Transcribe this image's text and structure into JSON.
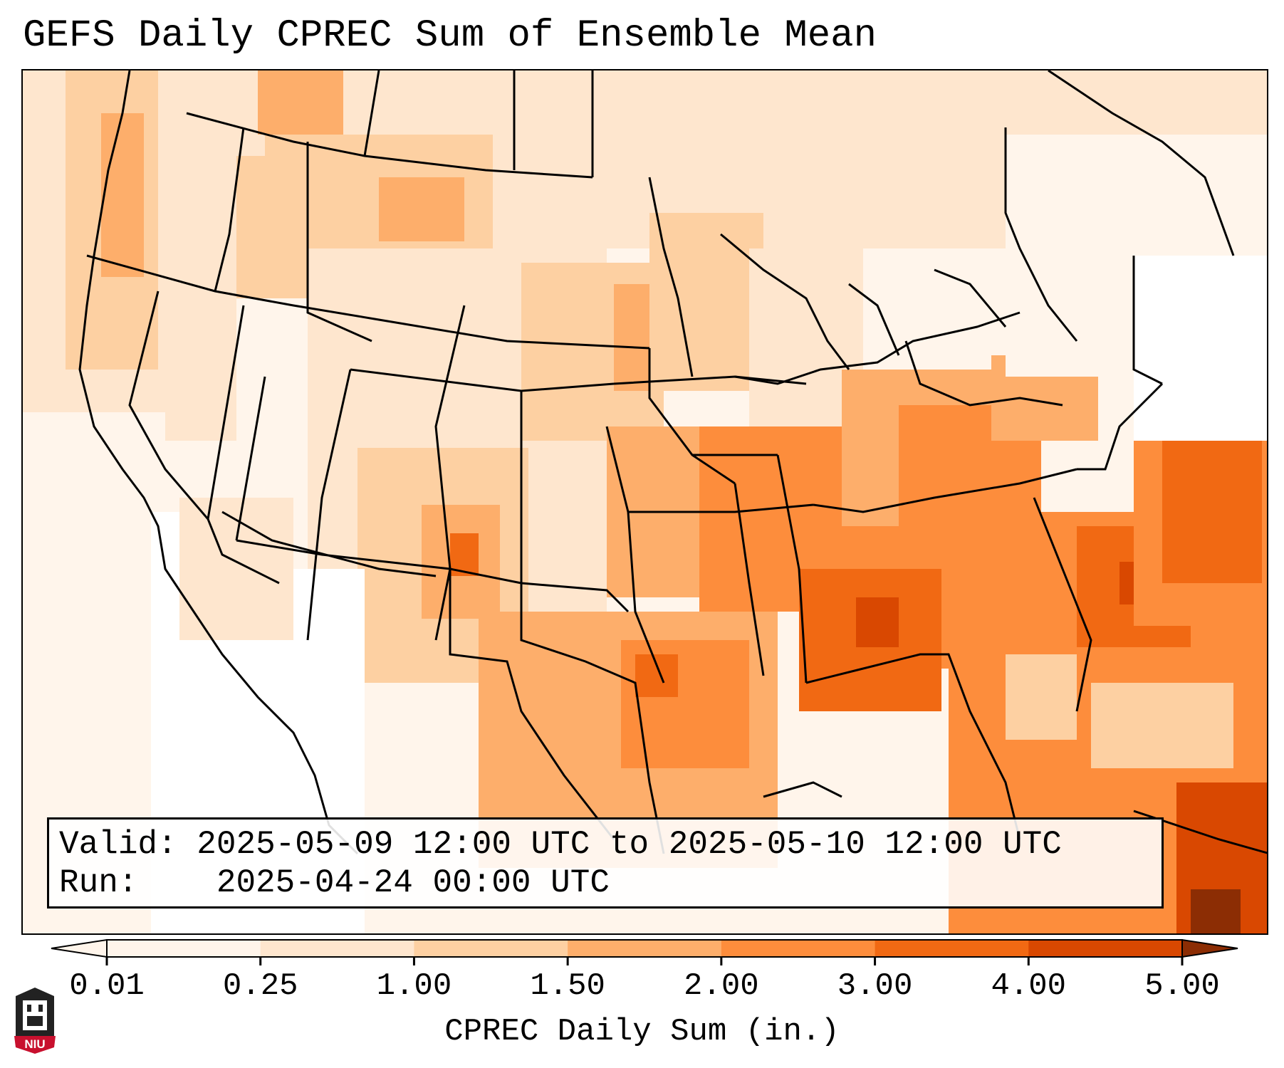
{
  "title": "GEFS Daily CPREC Sum of Ensemble Mean",
  "info": {
    "valid_label": "Valid:",
    "valid_value": "2025-05-09 12:00 UTC to 2025-05-10 12:00 UTC",
    "run_label": "Run:",
    "run_value": "2025-04-24 00:00 UTC"
  },
  "colorbar": {
    "label": "CPREC Daily Sum (in.)",
    "ticks": [
      "0.01",
      "0.25",
      "1.00",
      "1.50",
      "2.00",
      "3.00",
      "4.00",
      "5.00"
    ],
    "colors": [
      "#fff5eb",
      "#fee6ce",
      "#fdd0a2",
      "#fdae6b",
      "#fd8d3c",
      "#f16913",
      "#d94801",
      "#8c2d04"
    ],
    "extend": "both"
  },
  "logo": {
    "text": "NIU",
    "icon": "niu-castle-icon",
    "color": "#c8102e"
  },
  "map": {
    "region": "CONUS",
    "field": "CPREC daily sum",
    "colors": {
      "background": "#ffffff",
      "border_lines": "#000000"
    }
  }
}
